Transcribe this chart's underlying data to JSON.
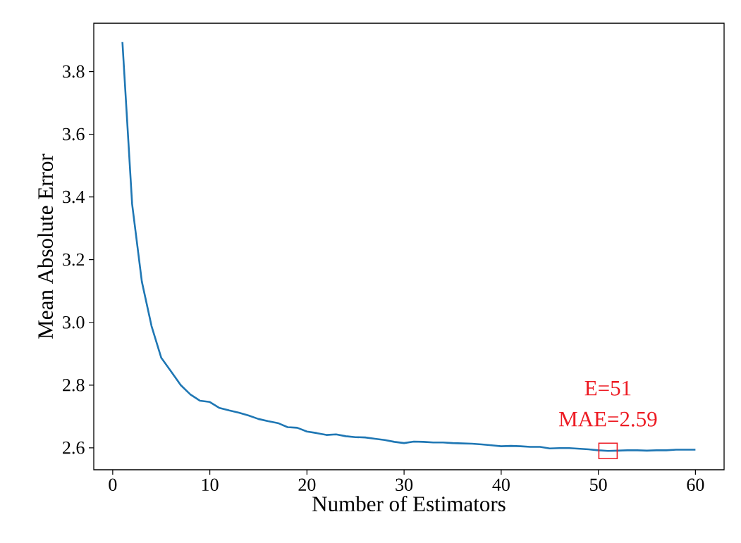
{
  "chart_data": {
    "type": "line",
    "xlabel": "Number of Estimators",
    "ylabel": "Mean Absolute Error",
    "x": [
      1,
      2,
      3,
      4,
      5,
      6,
      7,
      8,
      9,
      10,
      11,
      12,
      13,
      14,
      15,
      16,
      17,
      18,
      19,
      20,
      21,
      22,
      23,
      24,
      25,
      26,
      27,
      28,
      29,
      30,
      31,
      32,
      33,
      34,
      35,
      36,
      37,
      38,
      39,
      40,
      41,
      42,
      43,
      44,
      45,
      46,
      47,
      48,
      49,
      50,
      51,
      52,
      53,
      54,
      55,
      56,
      57,
      58,
      59,
      60
    ],
    "series": [
      {
        "color": "#1f77b4",
        "values": [
          3.894,
          3.377,
          3.13,
          2.988,
          2.887,
          2.844,
          2.8,
          2.77,
          2.75,
          2.746,
          2.727,
          2.719,
          2.712,
          2.703,
          2.692,
          2.685,
          2.679,
          2.666,
          2.664,
          2.652,
          2.647,
          2.641,
          2.643,
          2.637,
          2.634,
          2.633,
          2.629,
          2.625,
          2.619,
          2.615,
          2.62,
          2.619,
          2.617,
          2.617,
          2.615,
          2.614,
          2.613,
          2.611,
          2.608,
          2.605,
          2.606,
          2.605,
          2.603,
          2.603,
          2.598,
          2.599,
          2.599,
          2.597,
          2.595,
          2.592,
          2.59,
          2.591,
          2.592,
          2.592,
          2.591,
          2.592,
          2.592,
          2.594,
          2.594,
          2.594
        ]
      }
    ],
    "xlim": [
      -1.95,
      62.95
    ],
    "ylim": [
      2.53,
      3.954
    ],
    "xticks": [
      0,
      10,
      20,
      30,
      40,
      50,
      60
    ],
    "yticks": [
      2.6,
      2.8,
      {
        "value": 3,
        "label": "3.0"
      },
      3.2,
      3.4,
      3.6,
      3.8
    ],
    "annotations": [
      {
        "text": "E=51",
        "x": 51,
        "y": 2.59
      },
      {
        "text": "MAE=2.59",
        "x": 51,
        "y": 2.59
      }
    ]
  }
}
